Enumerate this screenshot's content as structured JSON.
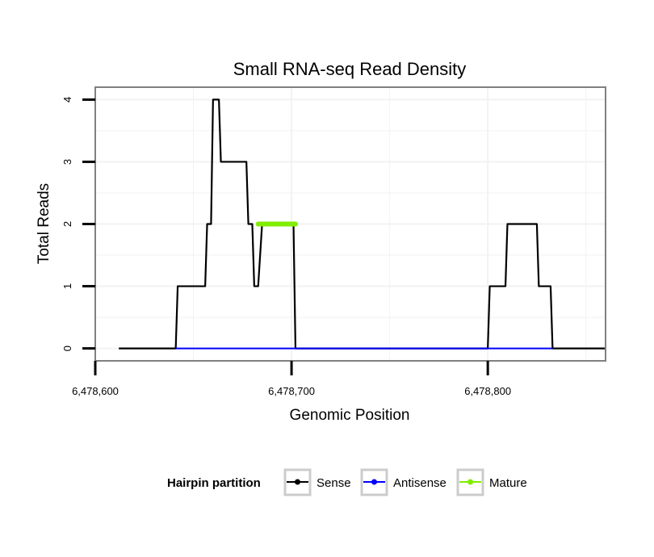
{
  "chart_data": {
    "type": "line",
    "title": "Small RNA-seq Read Density",
    "xlabel": "Genomic Position",
    "ylabel": "Total Reads",
    "xlim": [
      6478600,
      6478860
    ],
    "ylim": [
      -0.2,
      4.2
    ],
    "x_ticks": [
      6478600,
      6478700,
      6478800
    ],
    "x_tick_labels": [
      "6,478,600",
      "6,478,700",
      "6,478,800"
    ],
    "y_ticks": [
      0,
      1,
      2,
      3,
      4
    ],
    "y_tick_labels": [
      "0",
      "1",
      "2",
      "3",
      "4"
    ],
    "grid": true,
    "legend_position": "bottom",
    "legend_title": "Hairpin partition",
    "series": [
      {
        "name": "Sense",
        "color": "#000000",
        "x": [
          6478612,
          6478641,
          6478642,
          6478656,
          6478657,
          6478659,
          6478660,
          6478663,
          6478664,
          6478666,
          6478667,
          6478677,
          6478678,
          6478680,
          6478681,
          6478683,
          6478685,
          6478701,
          6478702,
          6478800,
          6478801,
          6478809,
          6478810,
          6478825,
          6478826,
          6478832,
          6478833,
          6478860
        ],
        "values": [
          0,
          0,
          1,
          1,
          2,
          2,
          4,
          4,
          3,
          3,
          3,
          3,
          2,
          2,
          1,
          1,
          2,
          2,
          0,
          0,
          1,
          1,
          2,
          2,
          1,
          1,
          0,
          0
        ]
      },
      {
        "name": "Antisense",
        "color": "#0000ff",
        "x": [
          6478641,
          6478702,
          6478800,
          6478833
        ],
        "values": [
          0,
          0,
          0,
          0
        ]
      },
      {
        "name": "Mature",
        "color": "#80ee00",
        "x": [
          6478683,
          6478702
        ],
        "values": [
          2,
          2
        ]
      }
    ]
  }
}
